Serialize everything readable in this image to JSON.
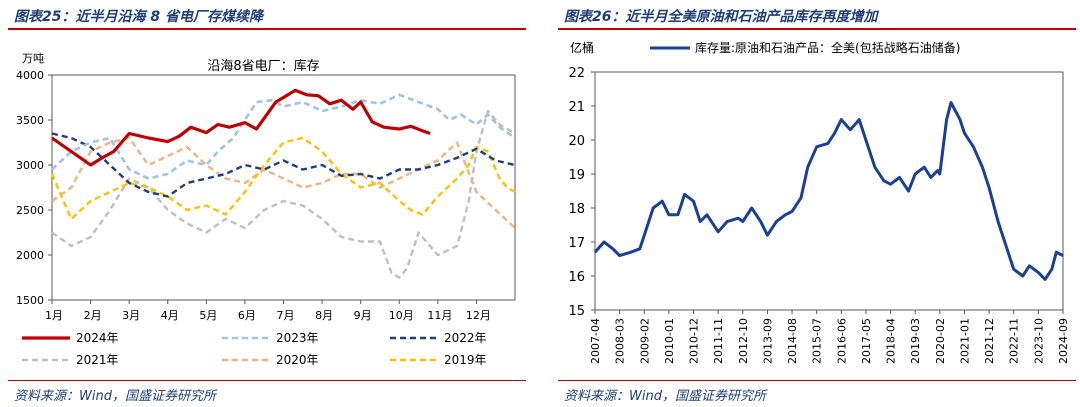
{
  "left_panel": {
    "figure_title": "图表25：近半月沿海 8 省电厂存煤续降",
    "source": "资料来源：Wind，国盛证券研究所"
  },
  "right_panel": {
    "figure_title": "图表26：近半月全美原油和石油产品库存再度增加",
    "source": "资料来源：Wind，国盛证券研究所"
  },
  "chart_data": [
    {
      "type": "line",
      "title": "沿海8省电厂：库存",
      "ylabel": "万吨",
      "ylim": [
        1500,
        4000
      ],
      "yticks": [
        1500,
        2000,
        2500,
        3000,
        3500,
        4000
      ],
      "xlim": [
        0,
        12
      ],
      "xticks": [
        0,
        1,
        2,
        3,
        4,
        5,
        6,
        7,
        8,
        9,
        10,
        11
      ],
      "xtick_labels": [
        "1月",
        "2月",
        "3月",
        "4月",
        "5月",
        "6月",
        "7月",
        "8月",
        "9月",
        "10月",
        "11月",
        "12月"
      ],
      "grid": false,
      "legend_position": "bottom",
      "series": [
        {
          "name": "2024年",
          "color": "#c00000",
          "style": "solid",
          "width": 3.2,
          "x": [
            0,
            0.5,
            1.0,
            1.3,
            1.6,
            2.0,
            2.5,
            3.0,
            3.3,
            3.6,
            4.0,
            4.3,
            4.6,
            5.0,
            5.3,
            5.6,
            5.8,
            6.0,
            6.3,
            6.6,
            6.9,
            7.2,
            7.5,
            7.8,
            8.0,
            8.3,
            8.6,
            9.0,
            9.3,
            9.6,
            9.8
          ],
          "y": [
            3300,
            3150,
            3000,
            3080,
            3150,
            3350,
            3300,
            3260,
            3320,
            3420,
            3360,
            3450,
            3420,
            3470,
            3400,
            3580,
            3700,
            3750,
            3830,
            3780,
            3770,
            3680,
            3720,
            3620,
            3700,
            3480,
            3420,
            3400,
            3430,
            3380,
            3350
          ]
        },
        {
          "name": "2023年",
          "color": "#9ec3e6",
          "style": "dashed",
          "width": 2.6,
          "x": [
            0,
            0.5,
            1.0,
            1.5,
            2.0,
            2.5,
            3.0,
            3.5,
            4.0,
            4.3,
            4.7,
            5.0,
            5.3,
            5.7,
            6.0,
            6.5,
            7.0,
            7.5,
            8.0,
            8.5,
            9.0,
            9.5,
            10.0,
            10.3,
            10.6,
            11.0,
            11.3,
            11.6,
            12.0
          ],
          "y": [
            2950,
            3150,
            3250,
            3300,
            2950,
            2850,
            2900,
            3050,
            3000,
            3150,
            3300,
            3500,
            3700,
            3720,
            3650,
            3700,
            3600,
            3650,
            3720,
            3680,
            3780,
            3700,
            3620,
            3500,
            3560,
            3450,
            3560,
            3420,
            3300
          ]
        },
        {
          "name": "2022年",
          "color": "#1f3f7a",
          "style": "dashed",
          "width": 2.4,
          "x": [
            0,
            0.5,
            1.0,
            1.5,
            2.0,
            2.5,
            3.0,
            3.5,
            4.0,
            4.5,
            5.0,
            5.5,
            6.0,
            6.5,
            7.0,
            7.5,
            8.0,
            8.5,
            9.0,
            9.5,
            10.0,
            10.5,
            11.0,
            11.5,
            12.0
          ],
          "y": [
            3350,
            3300,
            3200,
            3000,
            2800,
            2700,
            2650,
            2800,
            2850,
            2900,
            3000,
            2950,
            3050,
            2950,
            3000,
            2880,
            2900,
            2850,
            2950,
            2950,
            3000,
            3080,
            3180,
            3050,
            3000
          ]
        },
        {
          "name": "2021年",
          "color": "#bfbfbf",
          "style": "dashed",
          "width": 2.4,
          "x": [
            0,
            0.5,
            1.0,
            1.5,
            2.0,
            2.5,
            3.0,
            3.5,
            4.0,
            4.5,
            5.0,
            5.5,
            6.0,
            6.5,
            7.0,
            7.5,
            8.0,
            8.5,
            8.8,
            9.0,
            9.2,
            9.5,
            10.0,
            10.5,
            10.8,
            11.0,
            11.3,
            11.6,
            12.0
          ],
          "y": [
            2250,
            2100,
            2200,
            2500,
            2850,
            2750,
            2500,
            2350,
            2250,
            2400,
            2300,
            2500,
            2600,
            2550,
            2400,
            2200,
            2150,
            2150,
            1800,
            1750,
            1850,
            2250,
            2000,
            2100,
            2600,
            3150,
            3600,
            3450,
            3350
          ]
        },
        {
          "name": "2020年",
          "color": "#f4b183",
          "style": "dashed",
          "width": 2.4,
          "x": [
            0,
            0.5,
            1.0,
            1.5,
            2.0,
            2.5,
            3.0,
            3.5,
            4.0,
            4.5,
            5.0,
            5.5,
            6.0,
            6.5,
            7.0,
            7.5,
            8.0,
            8.5,
            9.0,
            9.5,
            10.0,
            10.5,
            11.0,
            11.5,
            12.0
          ],
          "y": [
            2600,
            2750,
            3150,
            3250,
            3300,
            3000,
            3100,
            3200,
            3000,
            2850,
            2800,
            2950,
            2850,
            2750,
            2800,
            2900,
            2900,
            2750,
            2850,
            2950,
            3050,
            3250,
            2700,
            2500,
            2300
          ]
        },
        {
          "name": "2019年",
          "color": "#ffc000",
          "style": "dashed",
          "width": 2.4,
          "x": [
            0,
            0.5,
            1.0,
            1.5,
            2.0,
            2.5,
            3.0,
            3.5,
            4.0,
            4.5,
            5.0,
            5.5,
            6.0,
            6.5,
            7.0,
            7.5,
            8.0,
            8.5,
            9.0,
            9.3,
            9.6,
            10.0,
            10.5,
            10.8,
            11.0,
            11.3,
            11.6,
            11.8,
            12.0
          ],
          "y": [
            2900,
            2400,
            2600,
            2700,
            2800,
            2750,
            2650,
            2500,
            2550,
            2450,
            2700,
            3000,
            3250,
            3300,
            3150,
            2900,
            2750,
            2800,
            2600,
            2500,
            2450,
            2650,
            2850,
            3000,
            3200,
            3150,
            2850,
            2750,
            2700
          ]
        }
      ]
    },
    {
      "type": "line",
      "title": "",
      "ylabel": "亿桶",
      "ylim": [
        15,
        22
      ],
      "yticks": [
        15,
        16,
        17,
        18,
        19,
        20,
        21,
        22
      ],
      "xtick_labels": [
        "2007-04",
        "2008-03",
        "2009-02",
        "2010-01",
        "2010-12",
        "2011-11",
        "2012-10",
        "2013-09",
        "2014-08",
        "2015-07",
        "2016-06",
        "2017-05",
        "2018-04",
        "2019-03",
        "2020-02",
        "2021-01",
        "2021-12",
        "2022-11",
        "2023-10",
        "2024-09"
      ],
      "grid": false,
      "legend_position": "top-left",
      "series": [
        {
          "name": "库存量:原油和石油产品：全美(包括战略石油储备)",
          "color": "#1a3f99",
          "x": [
            "2007-04",
            "2007-08",
            "2007-12",
            "2008-03",
            "2008-08",
            "2008-12",
            "2009-02",
            "2009-06",
            "2009-10",
            "2010-01",
            "2010-05",
            "2010-08",
            "2010-12",
            "2011-03",
            "2011-06",
            "2011-11",
            "2012-03",
            "2012-08",
            "2012-10",
            "2013-02",
            "2013-06",
            "2013-09",
            "2014-01",
            "2014-05",
            "2014-08",
            "2014-12",
            "2015-03",
            "2015-07",
            "2015-12",
            "2016-03",
            "2016-06",
            "2016-10",
            "2017-02",
            "2017-05",
            "2017-09",
            "2018-01",
            "2018-04",
            "2018-08",
            "2018-12",
            "2019-03",
            "2019-07",
            "2019-10",
            "2020-01",
            "2020-02",
            "2020-05",
            "2020-07",
            "2020-11",
            "2021-01",
            "2021-05",
            "2021-09",
            "2021-12",
            "2022-04",
            "2022-08",
            "2022-11",
            "2023-03",
            "2023-06",
            "2023-10",
            "2024-01",
            "2024-04",
            "2024-06",
            "2024-09"
          ],
          "y": [
            16.7,
            17.0,
            16.8,
            16.6,
            16.7,
            16.8,
            17.2,
            18.0,
            18.2,
            17.8,
            17.8,
            18.4,
            18.2,
            17.6,
            17.8,
            17.3,
            17.6,
            17.7,
            17.6,
            18.0,
            17.6,
            17.2,
            17.6,
            17.8,
            17.9,
            18.3,
            19.2,
            19.8,
            19.9,
            20.2,
            20.6,
            20.3,
            20.6,
            20.0,
            19.2,
            18.8,
            18.7,
            18.9,
            18.5,
            19.0,
            19.2,
            18.9,
            19.1,
            19.0,
            20.6,
            21.1,
            20.6,
            20.2,
            19.8,
            19.2,
            18.6,
            17.6,
            16.8,
            16.2,
            16.0,
            16.3,
            16.1,
            15.9,
            16.2,
            16.7,
            16.6
          ]
        }
      ]
    }
  ]
}
